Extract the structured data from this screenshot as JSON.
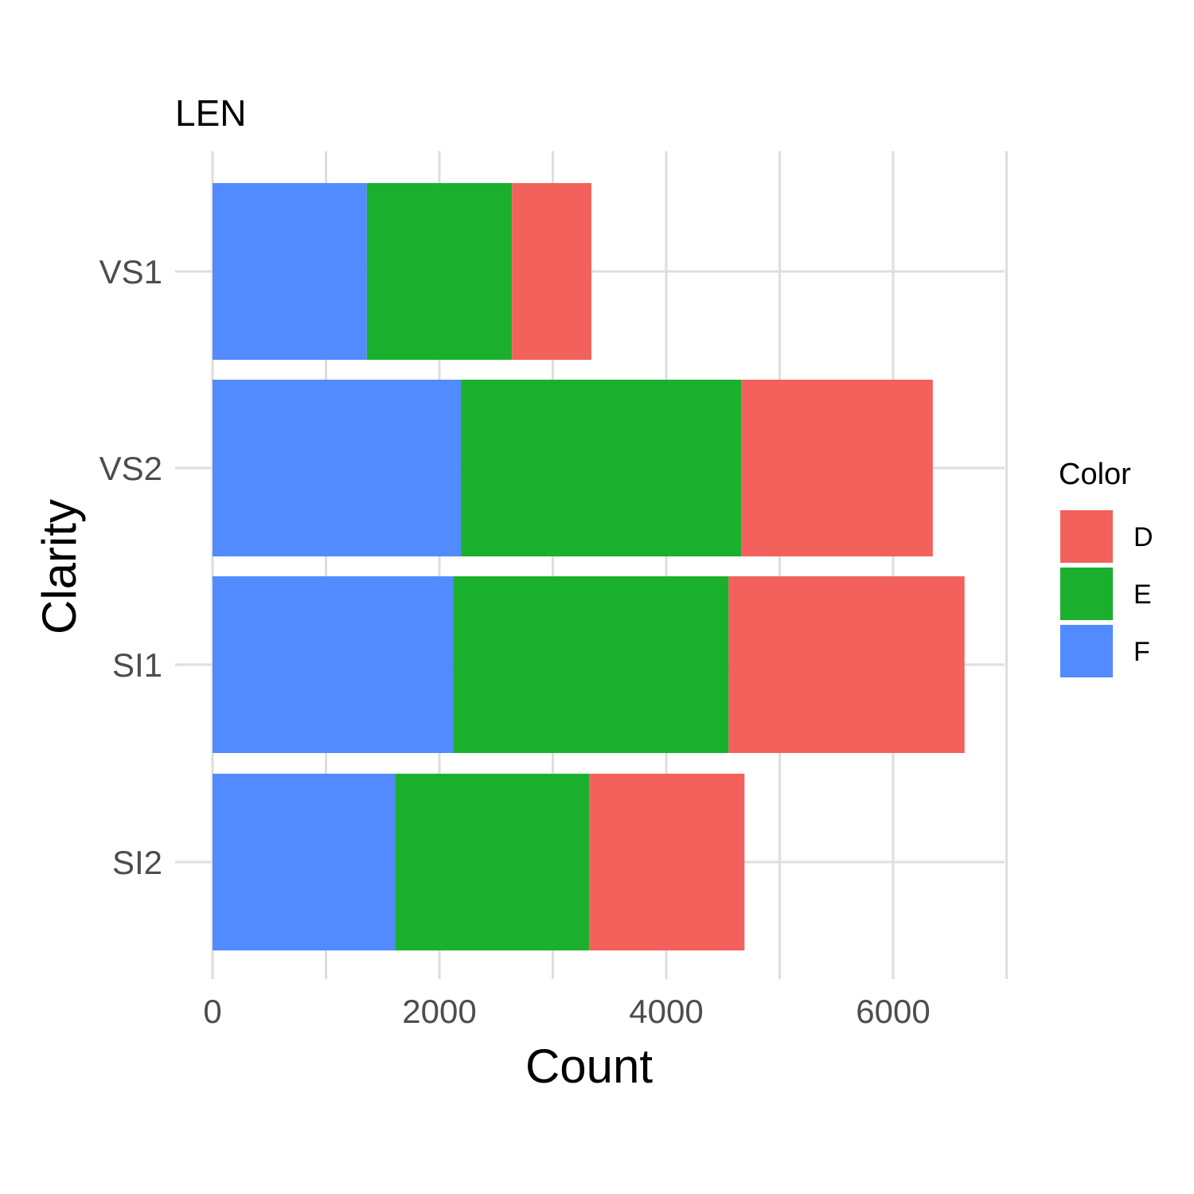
{
  "chart_data": {
    "type": "bar",
    "orientation": "horizontal",
    "stacked": true,
    "title": "LEN",
    "xlabel": "Count",
    "ylabel": "Clarity",
    "categories": [
      "VS1",
      "VS2",
      "SI1",
      "SI2"
    ],
    "series": [
      {
        "name": "F",
        "color": "#528AFF",
        "values": [
          1360,
          2190,
          2120,
          1610
        ]
      },
      {
        "name": "E",
        "color": "#1AB02E",
        "values": [
          1280,
          2470,
          2430,
          1710
        ]
      },
      {
        "name": "D",
        "color": "#F3615D",
        "values": [
          700,
          1690,
          2080,
          1370
        ]
      }
    ],
    "xlim": [
      0,
      7000
    ],
    "xticks": [
      0,
      2000,
      4000,
      6000
    ],
    "legend": {
      "title": "Color",
      "position": "right",
      "order": [
        "D",
        "E",
        "F"
      ]
    },
    "grid": true
  }
}
